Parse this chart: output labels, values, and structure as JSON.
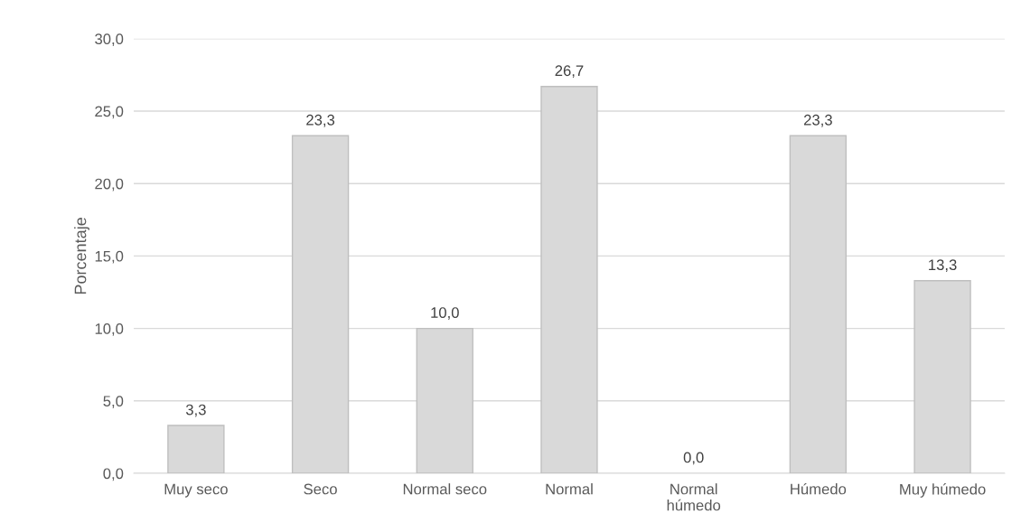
{
  "chart_data": {
    "type": "bar",
    "ylabel": "Porcentaje",
    "categories": [
      "Muy seco",
      "Seco",
      "Normal seco",
      "Normal",
      "Normal\nhúmedo",
      "Húmedo",
      "Muy húmedo"
    ],
    "values": [
      3.3,
      23.3,
      10.0,
      26.7,
      0.0,
      23.3,
      13.3
    ],
    "value_labels": [
      "3,3",
      "23,3",
      "10,0",
      "26,7",
      "0,0",
      "23,3",
      "13,3"
    ],
    "color": "#d9d9d9",
    "ylim": [
      0,
      30
    ],
    "yticks": [
      {
        "value": 0,
        "label": "0,0"
      },
      {
        "value": 5,
        "label": "5,0"
      },
      {
        "value": 10,
        "label": "10,0"
      },
      {
        "value": 15,
        "label": "15,0"
      },
      {
        "value": 20,
        "label": "20,0"
      },
      {
        "value": 25,
        "label": "25,0"
      },
      {
        "value": 30,
        "label": "30,0"
      }
    ],
    "grid": "y"
  }
}
